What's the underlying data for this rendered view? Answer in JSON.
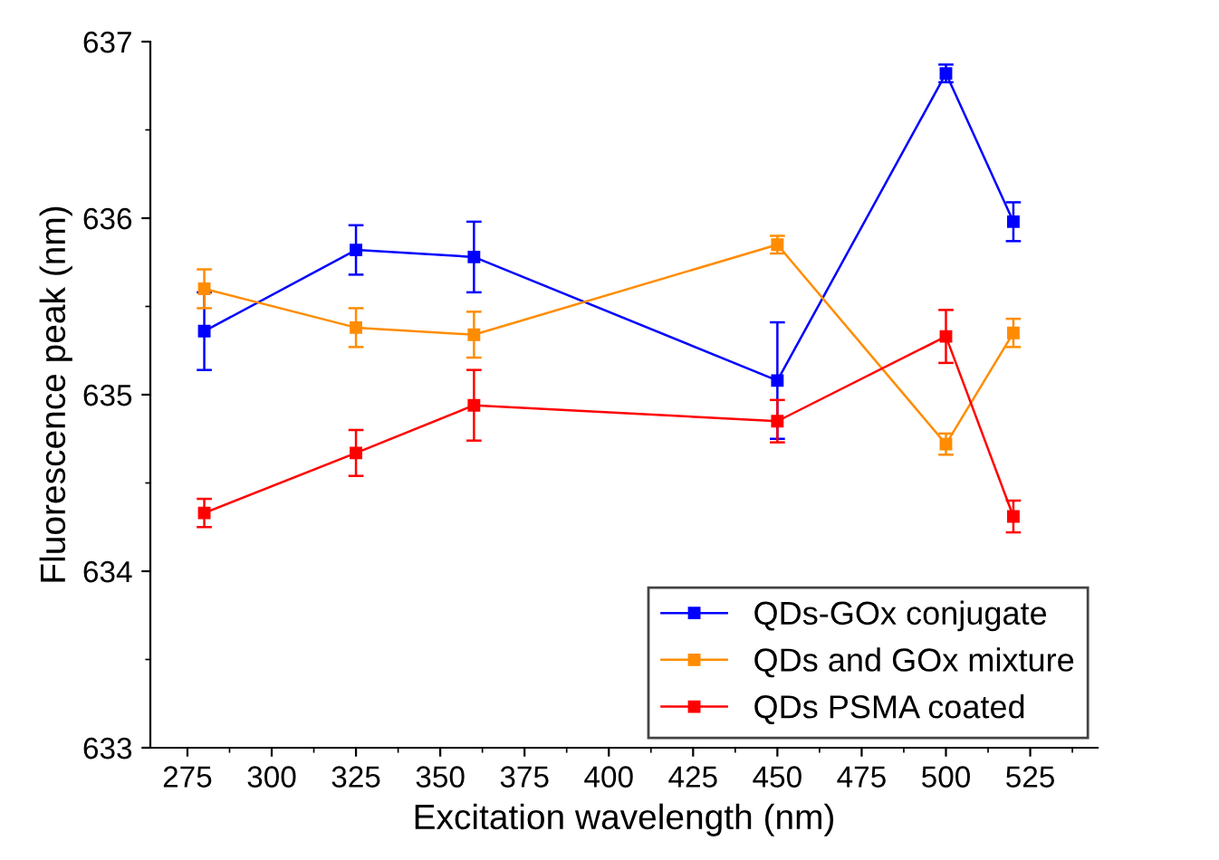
{
  "chart_data": {
    "type": "line",
    "xlabel": "Excitation wavelength (nm)",
    "ylabel": "Fluorescence peak (nm)",
    "x": [
      280,
      325,
      360,
      450,
      500,
      520
    ],
    "series": [
      {
        "name": "QDs-GOx conjugate",
        "color": "#0000ff",
        "values": [
          635.36,
          635.82,
          635.78,
          635.08,
          636.82,
          635.98
        ],
        "errors": [
          0.22,
          0.14,
          0.2,
          0.33,
          0.05,
          0.11
        ]
      },
      {
        "name": "QDs and GOx mixture",
        "color": "#ff8c00",
        "values": [
          635.6,
          635.38,
          635.34,
          635.85,
          634.72,
          635.35
        ],
        "errors": [
          0.11,
          0.11,
          0.13,
          0.05,
          0.06,
          0.08
        ]
      },
      {
        "name": "QDs PSMA coated",
        "color": "#ff0000",
        "values": [
          634.33,
          634.67,
          634.94,
          634.85,
          635.33,
          634.31
        ],
        "errors": [
          0.08,
          0.13,
          0.2,
          0.12,
          0.15,
          0.09
        ]
      }
    ],
    "xlim": [
      264,
      545
    ],
    "xticks": [
      275,
      300,
      325,
      350,
      375,
      400,
      425,
      450,
      475,
      500,
      525
    ],
    "ylim": [
      633,
      637
    ],
    "yticks": [
      633,
      634,
      635,
      636,
      637
    ],
    "marker": "square",
    "line_style": "solid",
    "grid": false,
    "legend": "bottom right"
  }
}
